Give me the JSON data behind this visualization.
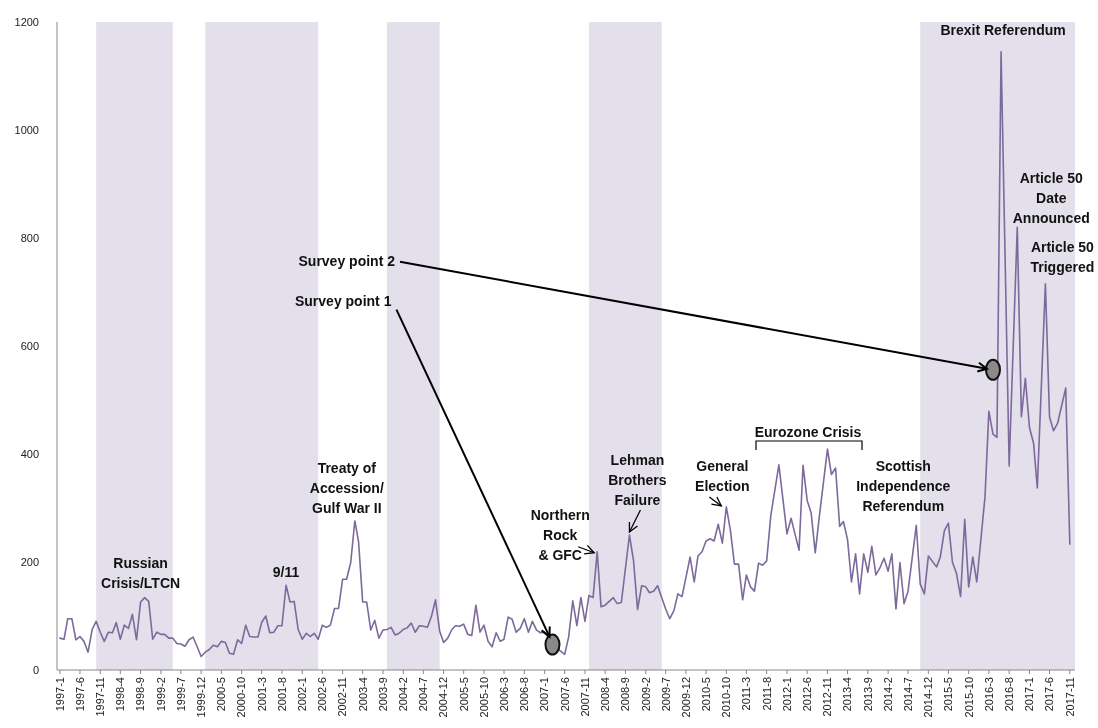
{
  "chart_data": {
    "type": "line",
    "xlim": [
      "1996-12-10",
      "2017-12-10"
    ],
    "ylim": [
      0,
      1200
    ],
    "yticks": [
      0,
      200,
      400,
      600,
      800,
      1000,
      1200
    ],
    "xticks": [
      {
        "value": "1997-01",
        "label": "1997-1"
      },
      {
        "value": "1997-06",
        "label": "1997-6"
      },
      {
        "value": "1997-11",
        "label": "1997-11"
      },
      {
        "value": "1998-04",
        "label": "1998-4"
      },
      {
        "value": "1998-09",
        "label": "1998-9"
      },
      {
        "value": "1999-02",
        "label": "1999-2"
      },
      {
        "value": "1999-07",
        "label": "1999-7"
      },
      {
        "value": "1999-12",
        "label": "1999-12"
      },
      {
        "value": "2000-05",
        "label": "2000-5"
      },
      {
        "value": "2000-10",
        "label": "2000-10"
      },
      {
        "value": "2001-03",
        "label": "2001-3"
      },
      {
        "value": "2001-08",
        "label": "2001-8"
      },
      {
        "value": "2002-01",
        "label": "2002-1"
      },
      {
        "value": "2002-06",
        "label": "2002-6"
      },
      {
        "value": "2002-11",
        "label": "2002-11"
      },
      {
        "value": "2003-04",
        "label": "2003-4"
      },
      {
        "value": "2003-09",
        "label": "2003-9"
      },
      {
        "value": "2004-02",
        "label": "2004-2"
      },
      {
        "value": "2004-07",
        "label": "2004-7"
      },
      {
        "value": "2004-12",
        "label": "2004-12"
      },
      {
        "value": "2005-05",
        "label": "2005-5"
      },
      {
        "value": "2005-10",
        "label": "2005-10"
      },
      {
        "value": "2006-03",
        "label": "2006-3"
      },
      {
        "value": "2006-08",
        "label": "2006-8"
      },
      {
        "value": "2007-01",
        "label": "2007-1"
      },
      {
        "value": "2007-06",
        "label": "2007-6"
      },
      {
        "value": "2007-11",
        "label": "2007-11"
      },
      {
        "value": "2008-04",
        "label": "2008-4"
      },
      {
        "value": "2008-09",
        "label": "2008-9"
      },
      {
        "value": "2009-02",
        "label": "2009-2"
      },
      {
        "value": "2009-07",
        "label": "2009-7"
      },
      {
        "value": "2009-12",
        "label": "2009-12"
      },
      {
        "value": "2010-05",
        "label": "2010-5"
      },
      {
        "value": "2010-10",
        "label": "2010-10"
      },
      {
        "value": "2011-03",
        "label": "2011-3"
      },
      {
        "value": "2011-08",
        "label": "2011-8"
      },
      {
        "value": "2012-01",
        "label": "2012-1"
      },
      {
        "value": "2012-06",
        "label": "2012-6"
      },
      {
        "value": "2012-11",
        "label": "2012-11"
      },
      {
        "value": "2013-04",
        "label": "2013-4"
      },
      {
        "value": "2013-09",
        "label": "2013-9"
      },
      {
        "value": "2014-02",
        "label": "2014-2"
      },
      {
        "value": "2014-07",
        "label": "2014-7"
      },
      {
        "value": "2014-12",
        "label": "2014-12"
      },
      {
        "value": "2015-05",
        "label": "2015-5"
      },
      {
        "value": "2015-10",
        "label": "2015-10"
      },
      {
        "value": "2016-03",
        "label": "2016-3"
      },
      {
        "value": "2016-08",
        "label": "2016-8"
      },
      {
        "value": "2017-01",
        "label": "2017-1"
      },
      {
        "value": "2017-06",
        "label": "2017-6"
      },
      {
        "value": "2017-11",
        "label": "2017-11"
      }
    ],
    "bands": [
      {
        "axis": "x",
        "from": "1997-10",
        "to": "1999-05",
        "color": "#e3dfeb"
      },
      {
        "axis": "x",
        "from": "2000-01",
        "to": "2002-05",
        "color": "#e3dfeb"
      },
      {
        "axis": "x",
        "from": "2003-10",
        "to": "2004-11",
        "color": "#e3dfeb"
      },
      {
        "axis": "x",
        "from": "2007-12",
        "to": "2009-06",
        "color": "#e3dfeb"
      },
      {
        "axis": "x",
        "from": "2014-10",
        "to": "2017-12-10",
        "color": "#e3dfeb"
      }
    ],
    "series": [
      {
        "color": "#7b6a9b",
        "x": [
          "1997-01",
          "1997-02",
          "1997-03",
          "1997-04",
          "1997-05",
          "1997-06",
          "1997-07",
          "1997-08",
          "1997-09",
          "1997-10",
          "1997-11",
          "1997-12",
          "1998-01",
          "1998-02",
          "1998-03",
          "1998-04",
          "1998-05",
          "1998-06",
          "1998-07",
          "1998-08",
          "1998-09",
          "1998-10",
          "1998-11",
          "1998-12",
          "1999-01",
          "1999-02",
          "1999-03",
          "1999-04",
          "1999-05",
          "1999-06",
          "1999-07",
          "1999-08",
          "1999-09",
          "1999-10",
          "1999-11",
          "1999-12",
          "2000-01",
          "2000-02",
          "2000-03",
          "2000-04",
          "2000-05",
          "2000-06",
          "2000-07",
          "2000-08",
          "2000-09",
          "2000-10",
          "2000-11",
          "2000-12",
          "2001-01",
          "2001-02",
          "2001-03",
          "2001-04",
          "2001-05",
          "2001-06",
          "2001-07",
          "2001-08",
          "2001-09",
          "2001-10",
          "2001-11",
          "2001-12",
          "2002-01",
          "2002-02",
          "2002-03",
          "2002-04",
          "2002-05",
          "2002-06",
          "2002-07",
          "2002-08",
          "2002-09",
          "2002-10",
          "2002-11",
          "2002-12",
          "2003-01",
          "2003-02",
          "2003-03",
          "2003-04",
          "2003-05",
          "2003-06",
          "2003-07",
          "2003-08",
          "2003-09",
          "2003-10",
          "2003-11",
          "2003-12",
          "2004-01",
          "2004-02",
          "2004-03",
          "2004-04",
          "2004-05",
          "2004-06",
          "2004-07",
          "2004-08",
          "2004-09",
          "2004-10",
          "2004-11",
          "2004-12",
          "2005-01",
          "2005-02",
          "2005-03",
          "2005-04",
          "2005-05",
          "2005-06",
          "2005-07",
          "2005-08",
          "2005-09",
          "2005-10",
          "2005-11",
          "2005-12",
          "2006-01",
          "2006-02",
          "2006-03",
          "2006-04",
          "2006-05",
          "2006-06",
          "2006-07",
          "2006-08",
          "2006-09",
          "2006-10",
          "2006-11",
          "2006-12",
          "2007-01",
          "2007-02",
          "2007-03",
          "2007-06",
          "2007-07",
          "2007-08",
          "2007-09",
          "2007-10",
          "2007-11",
          "2007-12",
          "2008-01",
          "2008-02",
          "2008-03",
          "2008-04",
          "2008-06",
          "2008-07",
          "2008-08",
          "2008-10",
          "2008-11",
          "2008-12",
          "2009-01",
          "2009-02",
          "2009-03",
          "2009-04",
          "2009-05",
          "2009-07",
          "2009-08",
          "2009-09",
          "2009-10",
          "2009-11",
          "2010-01",
          "2010-02",
          "2010-03",
          "2010-04",
          "2010-05",
          "2010-06",
          "2010-07",
          "2010-08",
          "2010-09",
          "2010-10",
          "2010-11",
          "2010-12",
          "2011-01",
          "2011-02",
          "2011-03",
          "2011-04",
          "2011-05",
          "2011-06",
          "2011-07",
          "2011-08",
          "2011-09",
          "2011-11",
          "2012-01",
          "2012-02",
          "2012-03",
          "2012-04",
          "2012-05",
          "2012-06",
          "2012-07",
          "2012-08",
          "2012-09",
          "2012-11",
          "2012-12",
          "2013-01",
          "2013-02",
          "2013-03",
          "2013-04",
          "2013-05",
          "2013-06",
          "2013-07",
          "2013-08",
          "2013-09",
          "2013-10",
          "2013-11",
          "2013-12",
          "2014-01",
          "2014-02",
          "2014-03",
          "2014-04",
          "2014-05",
          "2014-06",
          "2014-07",
          "2014-09",
          "2014-10",
          "2014-11",
          "2014-12",
          "2015-02",
          "2015-03",
          "2015-04",
          "2015-05",
          "2015-06",
          "2015-07",
          "2015-08",
          "2015-09",
          "2015-10",
          "2015-11",
          "2015-12",
          "2016-02",
          "2016-03",
          "2016-04",
          "2016-05",
          "2016-06",
          "2016-08",
          "2016-10",
          "2016-11",
          "2016-12",
          "2017-01",
          "2017-02",
          "2017-03",
          "2017-05",
          "2017-06",
          "2017-07",
          "2017-08",
          "2017-10",
          "2017-11"
        ],
        "values": [
          59,
          57,
          95,
          95,
          56,
          62,
          53,
          33,
          75,
          90,
          70,
          53,
          70,
          69,
          88,
          57,
          83,
          77,
          103,
          56,
          126,
          134,
          127,
          57,
          70,
          66,
          66,
          59,
          59,
          49,
          48,
          44,
          56,
          61,
          43,
          25,
          33,
          38,
          46,
          43,
          53,
          51,
          31,
          29,
          56,
          49,
          83,
          62,
          61,
          61,
          88,
          100,
          69,
          70,
          82,
          82,
          157,
          126,
          127,
          75,
          57,
          68,
          62,
          68,
          57,
          83,
          79,
          83,
          114,
          114,
          168,
          168,
          199,
          276,
          238,
          126,
          126,
          74,
          92,
          59,
          74,
          75,
          79,
          65,
          68,
          75,
          78,
          87,
          70,
          82,
          81,
          79,
          100,
          130,
          72,
          51,
          59,
          75,
          82,
          81,
          85,
          66,
          64,
          120,
          70,
          83,
          53,
          43,
          69,
          53,
          57,
          98,
          94,
          70,
          77,
          95,
          70,
          90,
          74,
          69,
          70,
          60,
          47,
          29,
          61,
          128,
          82,
          134,
          90,
          138,
          134,
          219,
          117,
          120,
          134,
          123,
          125,
          250,
          202,
          112,
          156,
          154,
          143,
          146,
          156,
          113,
          95,
          110,
          141,
          136,
          209,
          163,
          211,
          219,
          239,
          243,
          239,
          270,
          235,
          302,
          258,
          196,
          196,
          130,
          176,
          154,
          146,
          198,
          194,
          202,
          286,
          380,
          252,
          281,
          252,
          222,
          379,
          314,
          291,
          217,
          285,
          409,
          362,
          374,
          266,
          275,
          242,
          163,
          215,
          141,
          215,
          181,
          229,
          176,
          189,
          207,
          183,
          215,
          113,
          199,
          123,
          146,
          268,
          159,
          141,
          211,
          191,
          209,
          258,
          272,
          199,
          179,
          136,
          279,
          154,
          209,
          163,
          321,
          479,
          437,
          431,
          1145,
          378,
          820,
          469,
          540,
          449,
          420,
          337,
          715,
          469,
          443,
          457,
          522,
          233
        ]
      }
    ],
    "annotations": [
      {
        "text": "Russian\nCrisis/LTCN",
        "x": "1998-10",
        "y": 134
      },
      {
        "text": "9/11",
        "x": "2001-09",
        "y": 157
      },
      {
        "text": "Treaty of\nAccession/\nGulf War II",
        "x": "2003-02",
        "y": 276
      },
      {
        "text": "Northern\nRock\n& GFC",
        "x": "2008-02",
        "y": 219
      },
      {
        "text": "Lehman\nBrothers\nFailure",
        "x": "2008-10",
        "y": 250
      },
      {
        "text": "General\nElection",
        "x": "2010-10",
        "y": 302
      },
      "Eurozone Crisis",
      {
        "text": "Scottish\nIndependence\nReferendum",
        "x": "2014-09",
        "y": 268
      },
      {
        "text": "Brexit Referendum",
        "x": "2016-06",
        "y": 1145
      },
      {
        "text": "Article 50\nDate\nAnnounced",
        "x": "2016-10",
        "y": 820
      },
      {
        "text": "Article 50\nTriggered",
        "x": "2017-05",
        "y": 715
      },
      {
        "text": "Survey point 1",
        "x": "2007-03",
        "y": 47
      },
      {
        "text": "Survey point 2",
        "x": "2016-04",
        "y": 556
      }
    ]
  }
}
